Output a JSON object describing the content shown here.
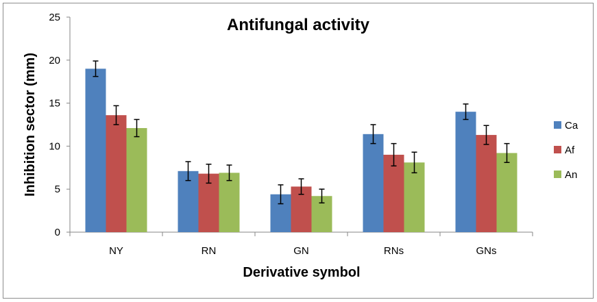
{
  "chart_data": {
    "type": "bar",
    "title": "Antifungal activity",
    "xlabel": "Derivative symbol",
    "ylabel": "Inhibition sector (mm)",
    "ylim": [
      0,
      25
    ],
    "yticks": [
      "0",
      "5",
      "10",
      "15",
      "20",
      "25"
    ],
    "categories": [
      "NY",
      "RN",
      "GN",
      "RNs",
      "GNs"
    ],
    "grid": false,
    "legend_position": "right",
    "series": [
      {
        "name": "Ca",
        "color": "#4f81bd",
        "values": [
          19.0,
          7.1,
          4.4,
          11.4,
          14.0
        ],
        "errors": [
          0.9,
          1.1,
          1.1,
          1.1,
          0.9
        ]
      },
      {
        "name": "Af",
        "color": "#c0504d",
        "values": [
          13.6,
          6.8,
          5.3,
          9.0,
          11.3
        ],
        "errors": [
          1.1,
          1.1,
          0.9,
          1.3,
          1.1
        ]
      },
      {
        "name": "An",
        "color": "#9bbb59",
        "values": [
          12.1,
          6.9,
          4.2,
          8.1,
          9.2
        ],
        "errors": [
          1.0,
          0.9,
          0.8,
          1.2,
          1.1
        ]
      }
    ]
  }
}
